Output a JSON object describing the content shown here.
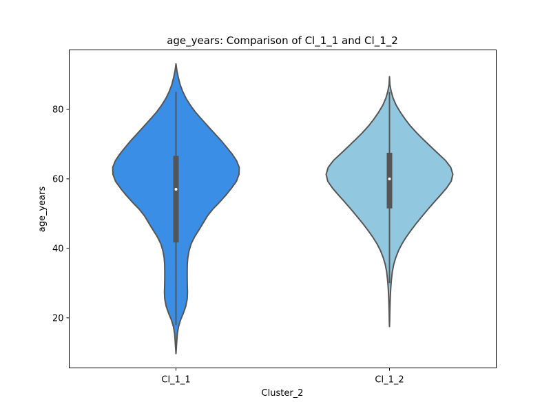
{
  "chart_data": {
    "type": "violin",
    "title": "age_years: Comparison of Cl_1_1 and Cl_1_2",
    "xlabel": "Cluster_2",
    "ylabel": "age_years",
    "categories": [
      "Cl_1_1",
      "Cl_1_2"
    ],
    "ylim": [
      5.6,
      97.1
    ],
    "yticks": [
      20,
      40,
      60,
      80
    ],
    "grid": false,
    "legend": "none",
    "line_color": "#555555",
    "series": [
      {
        "category": "Cl_1_1",
        "color": "#3a8ee6",
        "median": 57,
        "q1": 41.7,
        "q3": 66.6,
        "whisker_low": 18,
        "whisker_high": 85,
        "min": 9.7,
        "max": 93.1,
        "density_profile": [
          [
            93.1,
            0.0
          ],
          [
            91.1,
            0.0147
          ],
          [
            89.1,
            0.0377
          ],
          [
            87.1,
            0.0656
          ],
          [
            85.2,
            0.1049
          ],
          [
            83.2,
            0.1574
          ],
          [
            81.2,
            0.2262
          ],
          [
            79.2,
            0.3066
          ],
          [
            77.2,
            0.4033
          ],
          [
            75.2,
            0.5016
          ],
          [
            73.2,
            0.6016
          ],
          [
            71.2,
            0.7033
          ],
          [
            69.2,
            0.7951
          ],
          [
            67.2,
            0.8836
          ],
          [
            65.3,
            0.9541
          ],
          [
            63.3,
            0.9984
          ],
          [
            61.3,
            0.9951
          ],
          [
            59.3,
            0.9541
          ],
          [
            57.3,
            0.8754
          ],
          [
            55.3,
            0.7869
          ],
          [
            53.3,
            0.6885
          ],
          [
            51.3,
            0.582
          ],
          [
            49.3,
            0.4951
          ],
          [
            47.3,
            0.4295
          ],
          [
            45.3,
            0.3623
          ],
          [
            43.3,
            0.2934
          ],
          [
            41.3,
            0.2393
          ],
          [
            39.3,
            0.2066
          ],
          [
            37.3,
            0.1869
          ],
          [
            35.4,
            0.1787
          ],
          [
            33.4,
            0.177
          ],
          [
            31.4,
            0.177
          ],
          [
            29.4,
            0.1787
          ],
          [
            27.4,
            0.182
          ],
          [
            25.4,
            0.177
          ],
          [
            23.4,
            0.1557
          ],
          [
            21.4,
            0.118
          ],
          [
            19.4,
            0.0721
          ],
          [
            17.4,
            0.0393
          ],
          [
            15.4,
            0.0213
          ],
          [
            13.4,
            0.0131
          ],
          [
            11.5,
            0.0066
          ],
          [
            9.7,
            0.0
          ]
        ]
      },
      {
        "category": "Cl_1_2",
        "color": "#92c8df",
        "median": 60,
        "q1": 51.5,
        "q3": 67.5,
        "whisker_low": 30,
        "whisker_high": 85,
        "min": 17.5,
        "max": 89.4,
        "density_profile": [
          [
            89.4,
            0.0
          ],
          [
            87.1,
            0.0066
          ],
          [
            85.2,
            0.0262
          ],
          [
            83.2,
            0.0574
          ],
          [
            81.2,
            0.1049
          ],
          [
            79.2,
            0.1705
          ],
          [
            77.2,
            0.2459
          ],
          [
            75.2,
            0.3311
          ],
          [
            73.2,
            0.4311
          ],
          [
            71.2,
            0.541
          ],
          [
            69.2,
            0.6557
          ],
          [
            67.2,
            0.7721
          ],
          [
            65.3,
            0.8836
          ],
          [
            63.3,
            0.9672
          ],
          [
            61.3,
            1.0
          ],
          [
            59.3,
            0.9738
          ],
          [
            57.3,
            0.8984
          ],
          [
            55.3,
            0.8033
          ],
          [
            53.3,
            0.7049
          ],
          [
            51.3,
            0.6098
          ],
          [
            49.3,
            0.518
          ],
          [
            47.3,
            0.4279
          ],
          [
            45.3,
            0.3443
          ],
          [
            43.3,
            0.2656
          ],
          [
            41.3,
            0.1967
          ],
          [
            39.3,
            0.141
          ],
          [
            37.3,
            0.0984
          ],
          [
            35.4,
            0.0672
          ],
          [
            33.4,
            0.0459
          ],
          [
            31.4,
            0.0328
          ],
          [
            29.4,
            0.023
          ],
          [
            27.4,
            0.0164
          ],
          [
            25.4,
            0.0115
          ],
          [
            23.4,
            0.0082
          ],
          [
            21.4,
            0.0049
          ],
          [
            19.4,
            0.0033
          ],
          [
            17.5,
            0.0
          ]
        ]
      }
    ]
  }
}
